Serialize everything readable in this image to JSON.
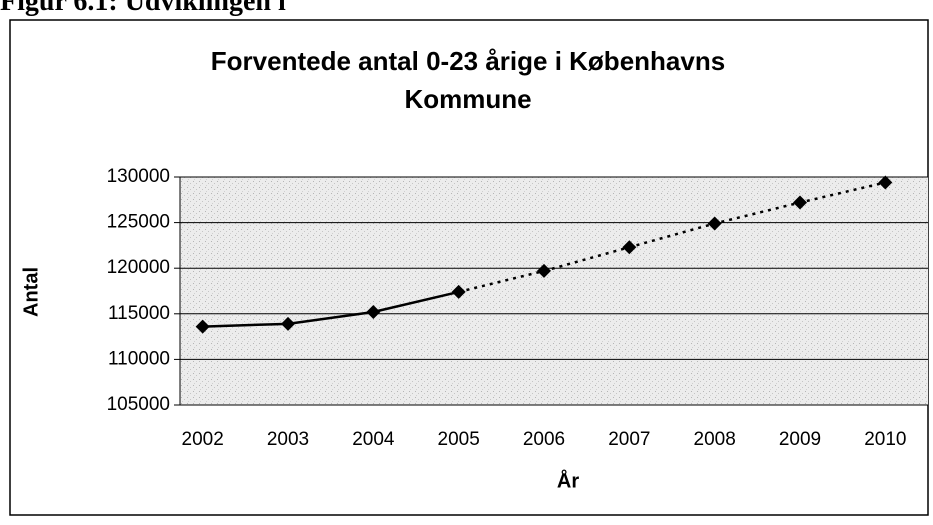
{
  "header": {
    "caption": "Figur 6.1: Udviklingen i"
  },
  "chart_data": {
    "type": "line",
    "title": "Forventede antal 0-23 årige i Københavns Kommune",
    "x_label": "År",
    "y_label": "Antal",
    "categories": [
      "2002",
      "2003",
      "2004",
      "2005",
      "2006",
      "2007",
      "2008",
      "2009",
      "2010"
    ],
    "series": [
      {
        "color": "#000000",
        "line_style": "solid",
        "values": [
          113600,
          113900,
          115200,
          117400,
          null,
          null,
          null,
          null,
          null
        ]
      },
      {
        "color": "#000000",
        "line_style": "dotted",
        "values": [
          null,
          null,
          null,
          null,
          119700,
          122300,
          124900,
          127200,
          129400
        ]
      }
    ],
    "ylim": [
      105000,
      130000
    ],
    "yticks": [
      105000,
      110000,
      115000,
      120000,
      125000,
      130000
    ],
    "grid": true
  }
}
